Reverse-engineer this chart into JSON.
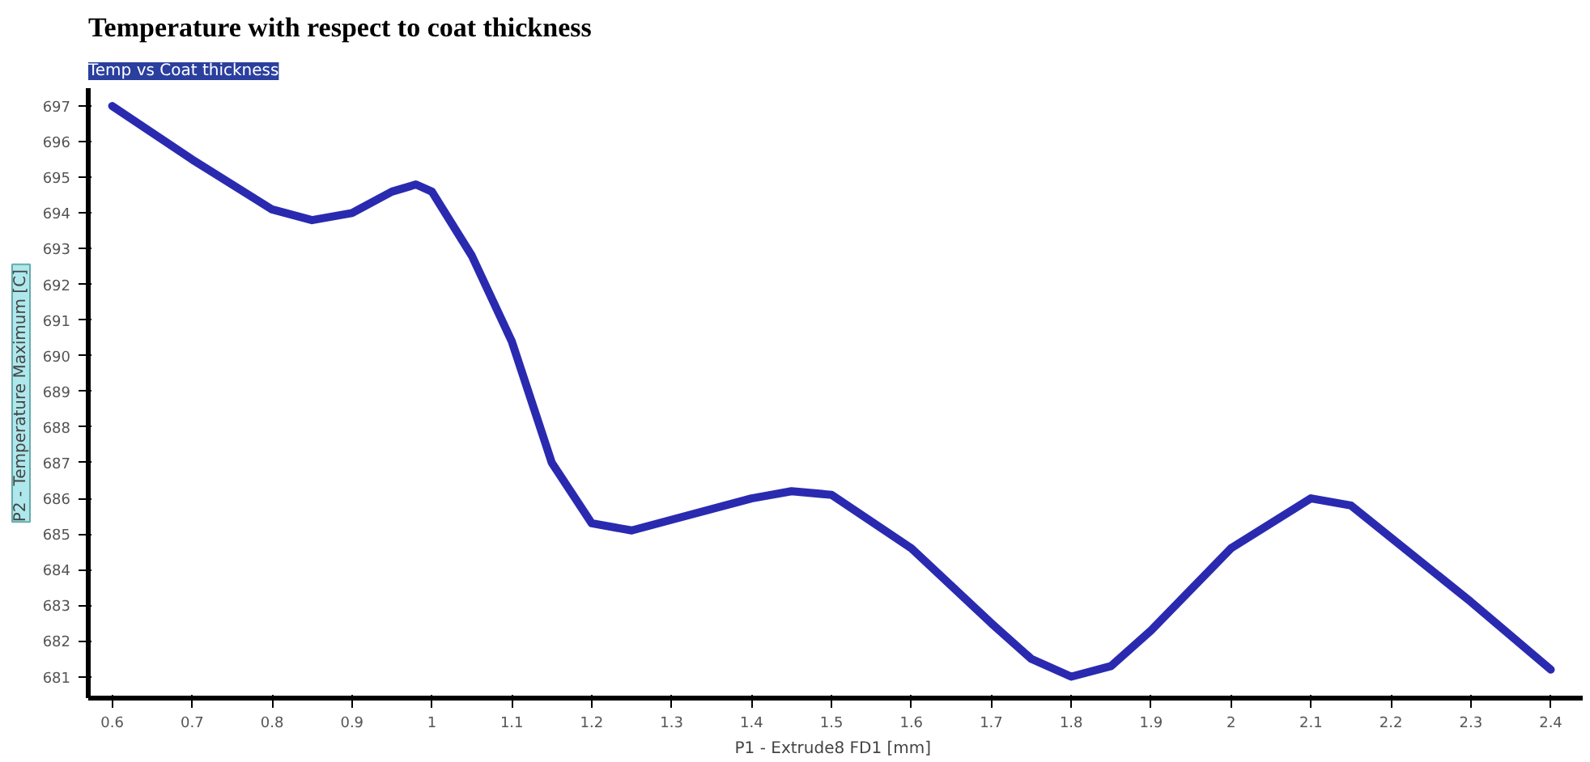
{
  "chart_data": {
    "type": "line",
    "title": "Temperature with respect to coat thickness",
    "subtitle": "Temp vs Coat thickness",
    "xlabel": "P1 - Extrude8 FD1  [mm]",
    "ylabel": "P2 - Temperature Maximum  [C]",
    "x": [
      0.6,
      0.7,
      0.8,
      0.85,
      0.9,
      0.95,
      0.98,
      1.0,
      1.05,
      1.1,
      1.15,
      1.2,
      1.25,
      1.3,
      1.4,
      1.45,
      1.5,
      1.6,
      1.7,
      1.75,
      1.8,
      1.85,
      1.9,
      2.0,
      2.1,
      2.15,
      2.2,
      2.3,
      2.4
    ],
    "series": [
      {
        "color": "#2a2ab0",
        "values": [
          697.0,
          695.5,
          694.1,
          693.8,
          694.0,
          694.6,
          694.8,
          694.6,
          692.8,
          690.4,
          687.0,
          685.3,
          685.1,
          685.4,
          686.0,
          686.2,
          686.1,
          684.6,
          682.5,
          681.5,
          681.0,
          681.3,
          682.3,
          684.6,
          686.0,
          685.8,
          684.9,
          683.1,
          681.2
        ]
      }
    ],
    "xlim": [
      0.57,
      2.44
    ],
    "ylim": [
      680.4,
      697.5
    ],
    "xticks": [
      0.6,
      0.7,
      0.8,
      0.9,
      1,
      1.1,
      1.2,
      1.3,
      1.4,
      1.5,
      1.6,
      1.7,
      1.8,
      1.9,
      2,
      2.1,
      2.2,
      2.3,
      2.4
    ],
    "yticks": [
      681,
      682,
      683,
      684,
      685,
      686,
      687,
      688,
      689,
      690,
      691,
      692,
      693,
      694,
      695,
      696,
      697
    ],
    "grid": false
  }
}
